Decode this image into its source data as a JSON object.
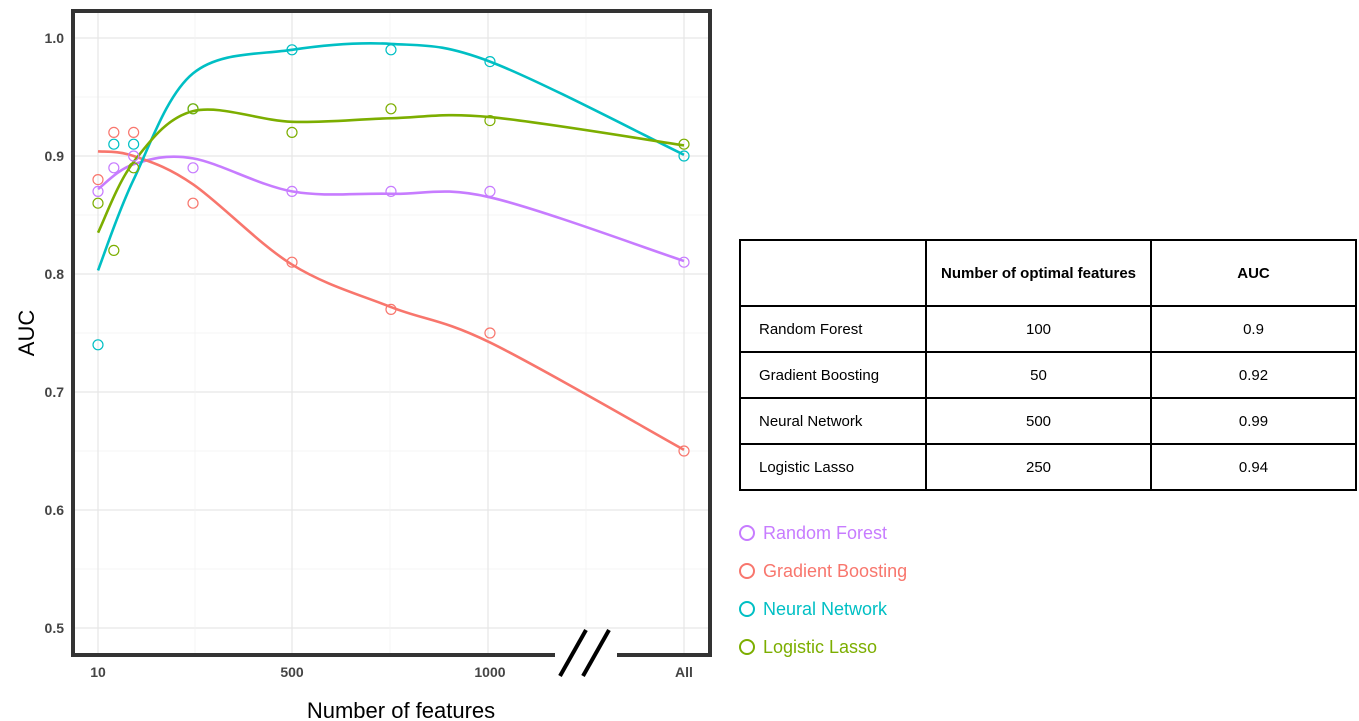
{
  "chart_data": {
    "type": "scatter",
    "xlabel": "Number of features",
    "ylabel": "AUC",
    "x_ticks": [
      "10",
      "500",
      "1000",
      "All"
    ],
    "y_ticks": [
      "0.5",
      "0.6",
      "0.7",
      "0.8",
      "0.9",
      "1.0"
    ],
    "ylim": [
      0.49,
      1.02
    ],
    "grid": true,
    "axis_break": "between 1000 and All",
    "x_values": [
      10,
      50,
      100,
      250,
      500,
      750,
      1000,
      "All"
    ],
    "series": [
      {
        "name": "Random Forest",
        "color": "#C77CFF",
        "points": [
          [
            10,
            0.87
          ],
          [
            50,
            0.89
          ],
          [
            100,
            0.9
          ],
          [
            250,
            0.89
          ],
          [
            500,
            0.87
          ],
          [
            750,
            0.87
          ],
          [
            1000,
            0.87
          ],
          [
            "All",
            0.81
          ]
        ]
      },
      {
        "name": "Gradient Boosting",
        "color": "#F8766D",
        "points": [
          [
            10,
            0.88
          ],
          [
            50,
            0.92
          ],
          [
            100,
            0.92
          ],
          [
            250,
            0.86
          ],
          [
            500,
            0.81
          ],
          [
            750,
            0.77
          ],
          [
            1000,
            0.75
          ],
          [
            "All",
            0.65
          ]
        ]
      },
      {
        "name": "Neural Network",
        "color": "#00BFC4",
        "points": [
          [
            10,
            0.74
          ],
          [
            50,
            0.91
          ],
          [
            100,
            0.91
          ],
          [
            250,
            0.94
          ],
          [
            500,
            0.99
          ],
          [
            750,
            0.99
          ],
          [
            1000,
            0.98
          ],
          [
            "All",
            0.9
          ]
        ]
      },
      {
        "name": "Logistic Lasso",
        "color": "#7CAE00",
        "points": [
          [
            10,
            0.86
          ],
          [
            50,
            0.82
          ],
          [
            100,
            0.89
          ],
          [
            250,
            0.94
          ],
          [
            500,
            0.92
          ],
          [
            750,
            0.94
          ],
          [
            1000,
            0.93
          ],
          [
            "All",
            0.91
          ]
        ]
      }
    ]
  },
  "table": {
    "headers": [
      "",
      "Number of optimal features",
      "AUC"
    ],
    "rows": [
      {
        "model": "Random Forest",
        "features": "100",
        "auc": "0.9"
      },
      {
        "model": "Gradient Boosting",
        "features": "50",
        "auc": "0.92"
      },
      {
        "model": "Neural Network",
        "features": "500",
        "auc": "0.99"
      },
      {
        "model": "Logistic Lasso",
        "features": "250",
        "auc": "0.94"
      }
    ]
  },
  "legend": [
    {
      "label": "Random Forest",
      "color": "#C77CFF"
    },
    {
      "label": "Gradient Boosting",
      "color": "#F8766D"
    },
    {
      "label": "Neural Network",
      "color": "#00BFC4"
    },
    {
      "label": "Logistic Lasso",
      "color": "#7CAE00"
    }
  ]
}
